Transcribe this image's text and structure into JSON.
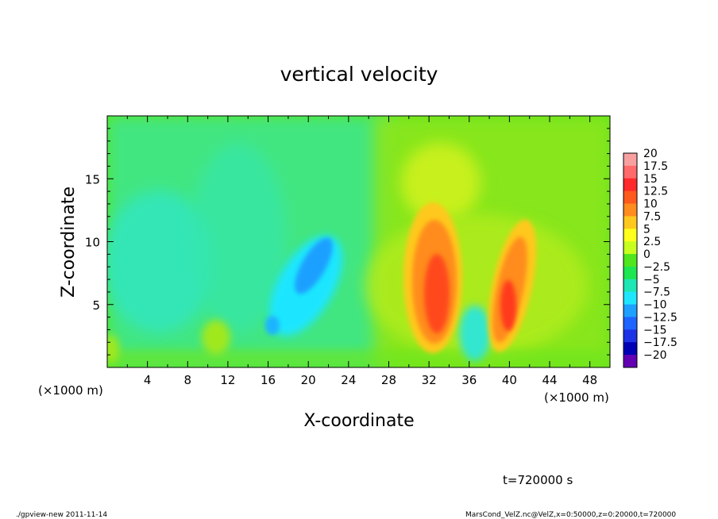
{
  "chart_data": {
    "type": "heatmap",
    "title": "vertical velocity",
    "xlabel": "X-coordinate",
    "ylabel": "Z-coordinate",
    "x_unit_left": "(×1000 m)",
    "x_unit_right": "(×1000 m)",
    "xlim": [
      0,
      50
    ],
    "ylim": [
      0,
      20
    ],
    "xticks": [
      4,
      8,
      12,
      16,
      20,
      24,
      28,
      32,
      36,
      40,
      44,
      48
    ],
    "yticks": [
      5,
      10,
      15
    ],
    "colorbar": {
      "levels": [
        20,
        17.5,
        15,
        12.5,
        10,
        7.5,
        5,
        2.5,
        0,
        -2.5,
        -5,
        -7.5,
        -10,
        -12.5,
        -15,
        -17.5,
        -20
      ],
      "labels": [
        "20",
        "17.5",
        "15",
        "12.5",
        "10",
        "7.5",
        "5",
        "2.5",
        "0",
        "−2.5",
        "−5",
        "−7.5",
        "−10",
        "−12.5",
        "−15",
        "−17.5",
        "−20"
      ],
      "colors": [
        "#f8a0a0",
        "#ff6a6a",
        "#ff2a2a",
        "#ff5a1e",
        "#ff8c1e",
        "#ffc81e",
        "#ffff1e",
        "#c8ff1e",
        "#50e61e",
        "#1ee650",
        "#1ee6b4",
        "#1ee6ff",
        "#1ea0ff",
        "#1e64ff",
        "#1e32e6",
        "#0000b4",
        "#6400b4"
      ]
    },
    "features": [
      {
        "x": 32.5,
        "z": 6.5,
        "value": 12.5,
        "sign": "updraft"
      },
      {
        "x": 39.5,
        "z": 6.0,
        "value": 12.0,
        "sign": "updraft"
      },
      {
        "x": 20.5,
        "z": 7.5,
        "value": -8.0,
        "sign": "downdraft"
      },
      {
        "x": 16.5,
        "z": 3.0,
        "value": -7.0,
        "sign": "downdraft"
      },
      {
        "x": 3.0,
        "z": 9.0,
        "value": -4.0,
        "sign": "downdraft"
      }
    ],
    "time_label": "t=720000 s"
  },
  "footer": {
    "left": "./gpview-new  2011-11-14",
    "right": "MarsCond_VelZ.nc@VelZ,x=0:50000,z=0:20000,t=720000"
  }
}
